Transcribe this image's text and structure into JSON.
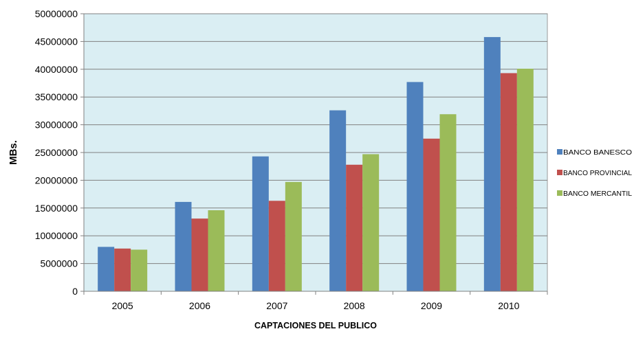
{
  "chart_data": {
    "type": "bar",
    "title": "",
    "xlabel": "CAPTACIONES DEL PUBLICO",
    "ylabel": "MBs.",
    "categories": [
      "2005",
      "2006",
      "2007",
      "2008",
      "2009",
      "2010"
    ],
    "series": [
      {
        "name": "BANCO BANESCO",
        "color": "#4F81BD",
        "values": [
          8000000,
          16100000,
          24300000,
          32600000,
          37700000,
          45800000
        ]
      },
      {
        "name": "BANCO PROVINCIAL",
        "color": "#C0504D",
        "values": [
          7700000,
          13100000,
          16300000,
          22800000,
          27500000,
          39300000
        ]
      },
      {
        "name": "BANCO MERCANTIL",
        "color": "#9BBB59",
        "values": [
          7500000,
          14600000,
          19700000,
          24700000,
          31900000,
          40100000
        ]
      }
    ],
    "ylim": [
      0,
      50000000
    ],
    "yticks": [
      "0",
      "5000000",
      "10000000",
      "15000000",
      "20000000",
      "25000000",
      "30000000",
      "35000000",
      "40000000",
      "45000000",
      "50000000"
    ],
    "grid": true,
    "plot_background": "#DAEEF3",
    "legend_position": "right"
  }
}
